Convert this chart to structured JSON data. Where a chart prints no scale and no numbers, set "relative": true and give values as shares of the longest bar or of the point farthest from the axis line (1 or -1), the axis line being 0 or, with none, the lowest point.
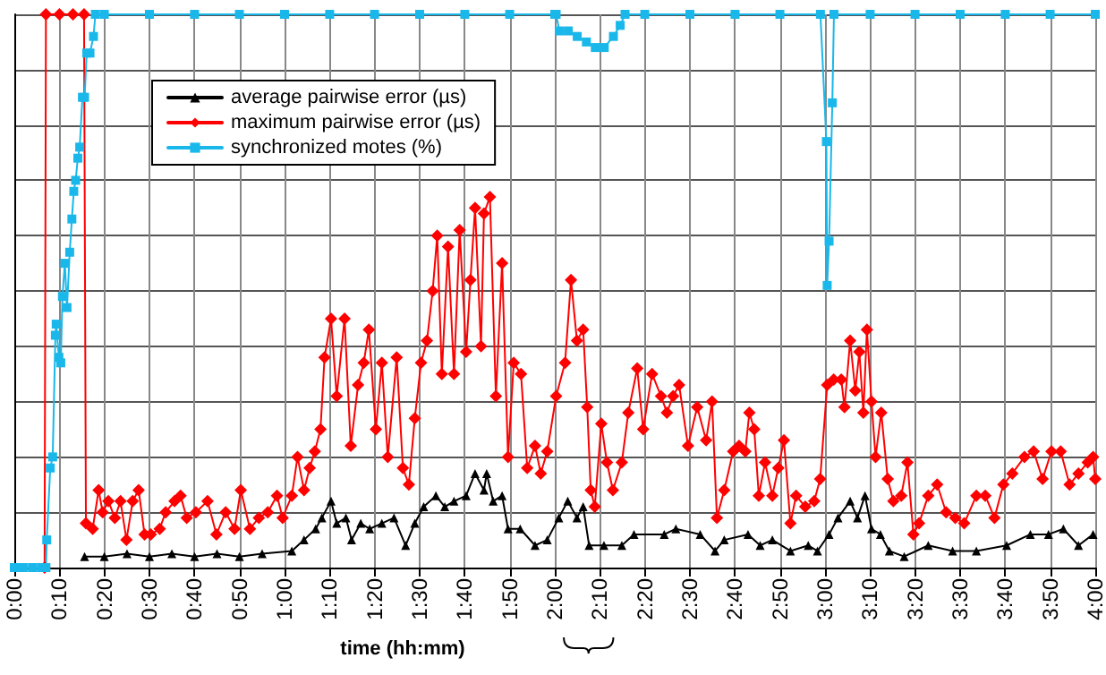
{
  "chart_data": {
    "type": "line",
    "relative": true,
    "xlabel": "time (hh:mm)",
    "grid": true,
    "legend": "top left",
    "line_style": "solid",
    "xlim": [
      0,
      4
    ],
    "xticks": [
      {
        "value": 0,
        "label": "0:00"
      },
      {
        "value": 0.1667,
        "label": "0:10"
      },
      {
        "value": 0.3333,
        "label": "0:20"
      },
      {
        "value": 0.5,
        "label": "0:30"
      },
      {
        "value": 0.6667,
        "label": "0:40"
      },
      {
        "value": 0.8333,
        "label": "0:50"
      },
      {
        "value": 1,
        "label": "1:00"
      },
      {
        "value": 1.1667,
        "label": "1:10"
      },
      {
        "value": 1.3333,
        "label": "1:20"
      },
      {
        "value": 1.5,
        "label": "1:30"
      },
      {
        "value": 1.6667,
        "label": "1:40"
      },
      {
        "value": 1.8333,
        "label": "1:50"
      },
      {
        "value": 2,
        "label": "2:00"
      },
      {
        "value": 2.1667,
        "label": "2:10"
      },
      {
        "value": 2.3333,
        "label": "2:20"
      },
      {
        "value": 2.5,
        "label": "2:30"
      },
      {
        "value": 2.6667,
        "label": "2:40"
      },
      {
        "value": 2.8333,
        "label": "2:50"
      },
      {
        "value": 3,
        "label": "3:00"
      },
      {
        "value": 3.1667,
        "label": "3:10"
      },
      {
        "value": 3.3333,
        "label": "3:20"
      },
      {
        "value": 3.5,
        "label": "3:30"
      },
      {
        "value": 3.6667,
        "label": "3:40"
      },
      {
        "value": 3.8333,
        "label": "3:50"
      },
      {
        "value": 4,
        "label": "4:00"
      }
    ],
    "series": [
      {
        "name": "average pairwise error (µs)",
        "color": "#000000",
        "marker": "triangle",
        "x": [
          0.26,
          0.333,
          0.417,
          0.5,
          0.583,
          0.667,
          0.75,
          0.833,
          0.917,
          1.027,
          1.072,
          1.115,
          1.138,
          1.172,
          1.193,
          1.227,
          1.248,
          1.282,
          1.315,
          1.36,
          1.405,
          1.448,
          1.482,
          1.515,
          1.56,
          1.593,
          1.627,
          1.672,
          1.705,
          1.738,
          1.748,
          1.772,
          1.805,
          1.827,
          1.872,
          1.927,
          1.972,
          2.015,
          2.048,
          2.082,
          2.105,
          2.127,
          2.182,
          2.248,
          2.293,
          2.405,
          2.448,
          2.538,
          2.593,
          2.627,
          2.715,
          2.76,
          2.805,
          2.872,
          2.938,
          2.972,
          3.015,
          3.048,
          3.093,
          3.12,
          3.148,
          3.172,
          3.205,
          3.238,
          3.293,
          3.382,
          3.472,
          3.56,
          3.672,
          3.76,
          3.827,
          3.882,
          3.938,
          3.992
        ],
        "values": [
          0.02,
          0.02,
          0.025,
          0.02,
          0.025,
          0.02,
          0.025,
          0.02,
          0.025,
          0.03,
          0.05,
          0.07,
          0.09,
          0.12,
          0.08,
          0.09,
          0.05,
          0.08,
          0.07,
          0.08,
          0.09,
          0.04,
          0.08,
          0.11,
          0.13,
          0.11,
          0.12,
          0.13,
          0.17,
          0.14,
          0.17,
          0.12,
          0.13,
          0.07,
          0.07,
          0.04,
          0.05,
          0.09,
          0.12,
          0.09,
          0.11,
          0.04,
          0.04,
          0.04,
          0.06,
          0.06,
          0.07,
          0.06,
          0.03,
          0.05,
          0.06,
          0.04,
          0.05,
          0.03,
          0.04,
          0.03,
          0.06,
          0.09,
          0.12,
          0.09,
          0.13,
          0.07,
          0.06,
          0.03,
          0.02,
          0.04,
          0.03,
          0.03,
          0.04,
          0.06,
          0.06,
          0.07,
          0.04,
          0.06
        ]
      },
      {
        "name": "maximum pairwise error (µs)",
        "color": "#ff0000",
        "marker": "diamond",
        "x": [
          0.112,
          0.117,
          0.167,
          0.217,
          0.258,
          0.265,
          0.29,
          0.312,
          0.327,
          0.348,
          0.372,
          0.393,
          0.415,
          0.438,
          0.46,
          0.482,
          0.505,
          0.538,
          0.56,
          0.593,
          0.615,
          0.638,
          0.672,
          0.715,
          0.748,
          0.782,
          0.815,
          0.838,
          0.872,
          0.905,
          0.938,
          0.972,
          0.993,
          1.027,
          1.048,
          1.072,
          1.093,
          1.112,
          1.133,
          1.148,
          1.172,
          1.193,
          1.222,
          1.245,
          1.272,
          1.293,
          1.312,
          1.338,
          1.36,
          1.382,
          1.415,
          1.438,
          1.46,
          1.482,
          1.505,
          1.527,
          1.548,
          1.565,
          1.582,
          1.605,
          1.627,
          1.648,
          1.672,
          1.688,
          1.705,
          1.727,
          1.738,
          1.76,
          1.782,
          1.805,
          1.827,
          1.848,
          1.875,
          1.898,
          1.927,
          1.948,
          1.972,
          2.005,
          2.038,
          2.06,
          2.082,
          2.105,
          2.12,
          2.133,
          2.148,
          2.172,
          2.193,
          2.215,
          2.248,
          2.272,
          2.305,
          2.327,
          2.36,
          2.393,
          2.415,
          2.438,
          2.46,
          2.493,
          2.527,
          2.56,
          2.582,
          2.6,
          2.627,
          2.66,
          2.682,
          2.705,
          2.72,
          2.738,
          2.755,
          2.778,
          2.805,
          2.827,
          2.848,
          2.872,
          2.893,
          2.927,
          2.96,
          2.982,
          3.008,
          3.032,
          3.06,
          3.072,
          3.093,
          3.112,
          3.127,
          3.142,
          3.155,
          3.172,
          3.187,
          3.208,
          3.232,
          3.253,
          3.282,
          3.305,
          3.327,
          3.348,
          3.382,
          3.415,
          3.448,
          3.482,
          3.515,
          3.56,
          3.593,
          3.627,
          3.66,
          3.693,
          3.738,
          3.772,
          3.805,
          3.838,
          3.872,
          3.905,
          3.938,
          3.972,
          3.992,
          4.0
        ],
        "values": [
          0,
          1,
          1,
          1,
          1,
          0.08,
          0.07,
          0.14,
          0.1,
          0.12,
          0.09,
          0.12,
          0.05,
          0.12,
          0.14,
          0.06,
          0.06,
          0.07,
          0.1,
          0.12,
          0.13,
          0.09,
          0.1,
          0.12,
          0.06,
          0.1,
          0.07,
          0.14,
          0.07,
          0.09,
          0.1,
          0.13,
          0.09,
          0.13,
          0.2,
          0.14,
          0.18,
          0.21,
          0.25,
          0.38,
          0.45,
          0.31,
          0.45,
          0.22,
          0.33,
          0.37,
          0.43,
          0.25,
          0.37,
          0.2,
          0.38,
          0.18,
          0.15,
          0.27,
          0.37,
          0.41,
          0.5,
          0.6,
          0.35,
          0.58,
          0.35,
          0.61,
          0.39,
          0.52,
          0.65,
          0.4,
          0.64,
          0.67,
          0.31,
          0.55,
          0.2,
          0.37,
          0.35,
          0.18,
          0.22,
          0.17,
          0.21,
          0.31,
          0.37,
          0.52,
          0.41,
          0.43,
          0.29,
          0.14,
          0.11,
          0.26,
          0.19,
          0.14,
          0.19,
          0.28,
          0.36,
          0.25,
          0.35,
          0.31,
          0.28,
          0.31,
          0.33,
          0.22,
          0.29,
          0.23,
          0.3,
          0.09,
          0.14,
          0.21,
          0.22,
          0.21,
          0.28,
          0.25,
          0.13,
          0.19,
          0.13,
          0.18,
          0.23,
          0.08,
          0.13,
          0.11,
          0.12,
          0.16,
          0.33,
          0.34,
          0.34,
          0.29,
          0.41,
          0.32,
          0.39,
          0.28,
          0.43,
          0.3,
          0.2,
          0.28,
          0.16,
          0.12,
          0.13,
          0.19,
          0.06,
          0.08,
          0.13,
          0.15,
          0.1,
          0.09,
          0.08,
          0.13,
          0.13,
          0.09,
          0.15,
          0.17,
          0.2,
          0.21,
          0.16,
          0.21,
          0.21,
          0.15,
          0.17,
          0.19,
          0.2,
          0.16
        ]
      },
      {
        "name": "synchronized motes (%)",
        "color": "#1ab8ea",
        "marker": "square",
        "x": [
          0,
          0.033,
          0.067,
          0.1,
          0.117,
          0.12,
          0.133,
          0.142,
          0.152,
          0.155,
          0.165,
          0.172,
          0.178,
          0.187,
          0.195,
          0.205,
          0.213,
          0.22,
          0.227,
          0.235,
          0.242,
          0.252,
          0.26,
          0.268,
          0.28,
          0.293,
          0.3,
          0.333,
          0.5,
          0.667,
          0.833,
          1,
          1.167,
          1.333,
          1.5,
          1.667,
          1.833,
          2,
          2.005,
          2.017,
          2.05,
          2.083,
          2.117,
          2.15,
          2.183,
          2.217,
          2.242,
          2.26,
          2.333,
          2.5,
          2.667,
          2.833,
          2.983,
          3.005,
          3.008,
          3.015,
          3.027,
          3.033,
          3.167,
          3.333,
          3.5,
          3.667,
          3.833,
          4
        ],
        "values": [
          0,
          0,
          0,
          0,
          0,
          0.05,
          0.18,
          0.2,
          0.42,
          0.44,
          0.38,
          0.37,
          0.49,
          0.55,
          0.47,
          0.57,
          0.63,
          0.68,
          0.7,
          0.74,
          0.76,
          0.85,
          0.85,
          0.93,
          0.93,
          0.96,
          1,
          1,
          1,
          1,
          1,
          1,
          1,
          1,
          1,
          1,
          1,
          1,
          1,
          0.97,
          0.97,
          0.96,
          0.95,
          0.94,
          0.94,
          0.96,
          0.98,
          1,
          1,
          1,
          1,
          1,
          1,
          0.77,
          0.51,
          0.59,
          0.84,
          1,
          1,
          1,
          1,
          1,
          1,
          1
        ]
      }
    ]
  }
}
